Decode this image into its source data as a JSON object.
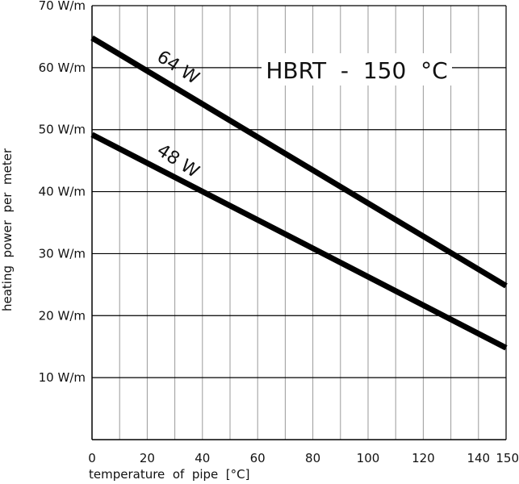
{
  "chart_data": {
    "type": "line",
    "title": "HBRT  -  150  °C",
    "xlabel": "temperature  of  pipe  [°C]",
    "ylabel": "heating  power  per  meter",
    "xlim": [
      0,
      150
    ],
    "ylim": [
      0,
      70
    ],
    "x_ticks": [
      "0",
      "20",
      "40",
      "60",
      "80",
      "100",
      "120",
      "140",
      "150"
    ],
    "x_tick_values": [
      0,
      20,
      40,
      60,
      80,
      100,
      120,
      140,
      150
    ],
    "x_grid_step": 10,
    "y_ticks": [
      "10  W/m",
      "20  W/m",
      "30  W/m",
      "40  W/m",
      "50  W/m",
      "60  W/m",
      "70  W/m"
    ],
    "y_tick_values": [
      10,
      20,
      30,
      40,
      50,
      60,
      70
    ],
    "grid": true,
    "series": [
      {
        "name": "64 W",
        "x": [
          0,
          150
        ],
        "y": [
          64.8,
          24.8
        ]
      },
      {
        "name": "48 W",
        "x": [
          0,
          150
        ],
        "y": [
          49.2,
          14.8
        ]
      }
    ],
    "colors": {
      "line": "#000000",
      "grid": "#000000",
      "minor_grid": "#9a9a9a"
    }
  }
}
